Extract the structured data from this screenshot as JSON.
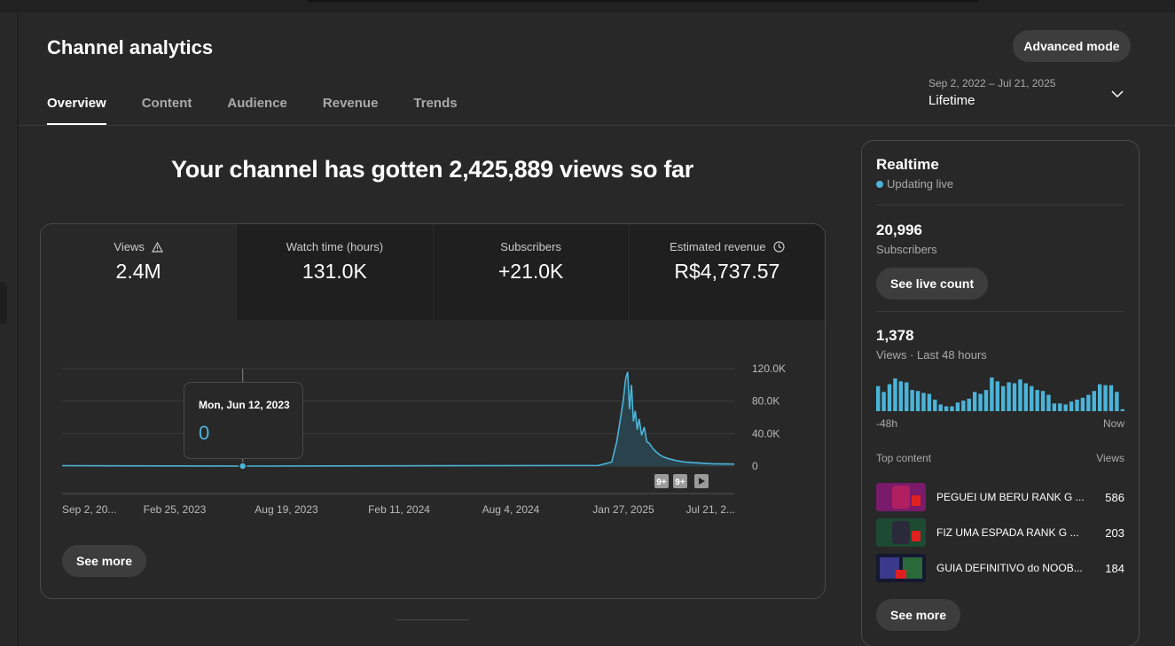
{
  "header": {
    "title": "Channel analytics",
    "advanced_mode_label": "Advanced mode",
    "tabs": [
      {
        "label": "Overview",
        "active": true
      },
      {
        "label": "Content",
        "active": false
      },
      {
        "label": "Audience",
        "active": false
      },
      {
        "label": "Revenue",
        "active": false
      },
      {
        "label": "Trends",
        "active": false
      }
    ],
    "date_range": "Sep 2, 2022 – Jul 21, 2025",
    "date_preset": "Lifetime"
  },
  "overview": {
    "headline": "Your channel has gotten 2,425,889 views so far",
    "metrics": [
      {
        "label": "Views",
        "value": "2.4M",
        "icon": "warning-icon"
      },
      {
        "label": "Watch time (hours)",
        "value": "131.0K"
      },
      {
        "label": "Subscribers",
        "value": "+21.0K"
      },
      {
        "label": "Estimated revenue",
        "value": "R$4,737.57",
        "icon": "clock-icon"
      }
    ],
    "tooltip": {
      "date": "Mon, Jun 12, 2023",
      "value": "0"
    },
    "see_more_label": "See more",
    "markers": [
      "9+",
      "9+"
    ]
  },
  "chart_data": {
    "type": "area",
    "title": "",
    "xlabel": "",
    "ylabel": "",
    "x_ticks": [
      "Sep 2, 20...",
      "Feb 25, 2023",
      "Aug 19, 2023",
      "Feb 11, 2024",
      "Aug 4, 2024",
      "Jan 27, 2025",
      "Jul 21, 2..."
    ],
    "y_ticks": [
      "0",
      "40.0K",
      "80.0K",
      "120.0K"
    ],
    "ylim": [
      0,
      120000
    ],
    "series": [
      {
        "color": "#4bb4d8",
        "x": [
          "2022-09-02",
          "2023-06-12",
          "2024-12-20",
          "2025-01-10",
          "2025-01-18",
          "2025-01-24",
          "2025-01-28",
          "2025-02-01",
          "2025-02-04",
          "2025-02-07",
          "2025-02-10",
          "2025-02-13",
          "2025-02-16",
          "2025-02-19",
          "2025-02-22",
          "2025-02-26",
          "2025-03-02",
          "2025-03-06",
          "2025-03-10",
          "2025-03-15",
          "2025-03-20",
          "2025-03-26",
          "2025-04-02",
          "2025-04-10",
          "2025-04-20",
          "2025-05-05",
          "2025-05-25",
          "2025-06-15",
          "2025-07-21"
        ],
        "values": [
          500,
          0,
          800,
          5000,
          30000,
          60000,
          80000,
          108000,
          116000,
          70000,
          100000,
          55000,
          68000,
          45000,
          58000,
          38000,
          48000,
          30000,
          28000,
          22000,
          18000,
          14000,
          11000,
          9000,
          7000,
          5000,
          4000,
          3000,
          2500
        ]
      }
    ]
  },
  "realtime": {
    "title": "Realtime",
    "status": "Updating live",
    "subscribers": "20,996",
    "subscribers_label": "Subscribers",
    "live_count_label": "See live count",
    "views": "1,378",
    "views_label": "Views · Last 48 hours",
    "axis_start": "-48h",
    "axis_end": "Now",
    "bars": [
      26,
      20,
      28,
      34,
      31,
      30,
      22,
      21,
      19,
      18,
      12,
      7,
      5,
      5,
      9,
      11,
      13,
      20,
      18,
      22,
      35,
      31,
      26,
      30,
      29,
      33,
      29,
      26,
      22,
      21,
      17,
      8,
      8,
      7,
      10,
      12,
      14,
      17,
      21,
      28,
      27,
      27,
      20,
      2
    ],
    "top_content_label": "Top content",
    "top_content_views_label": "Views",
    "top_content": [
      {
        "title": "PEGUEI UM BERU RANK G ...",
        "views": "586"
      },
      {
        "title": "FIZ UMA ESPADA RANK G ...",
        "views": "203"
      },
      {
        "title": "GUIA DEFINITIVO do NOOB...",
        "views": "184"
      }
    ],
    "see_more_label": "See more"
  }
}
